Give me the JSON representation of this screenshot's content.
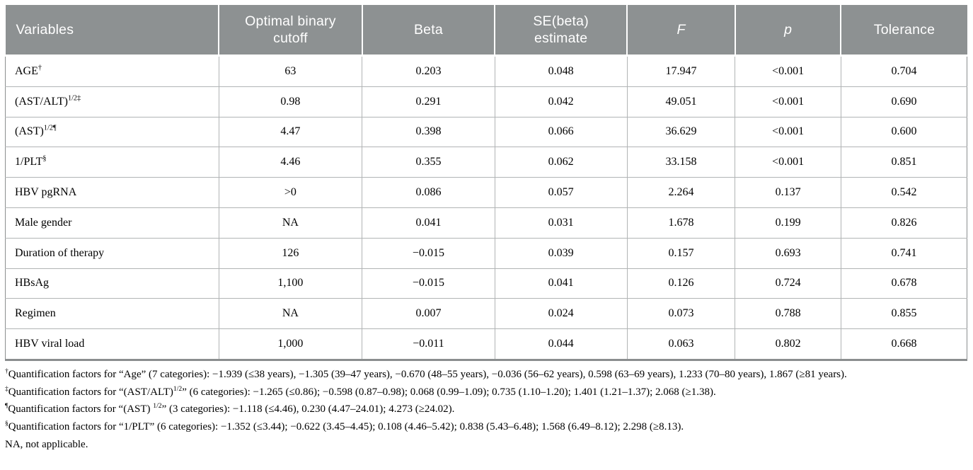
{
  "colors": {
    "header_bg": "#8d9192",
    "header_text": "#ffffff",
    "cell_border": "#b1b4b5",
    "outer_border": "#8b8e8f",
    "body_bg": "#ffffff",
    "text": "#000000"
  },
  "table": {
    "columns": [
      {
        "id": "variables",
        "lines": [
          "Variables"
        ],
        "italic": false
      },
      {
        "id": "optimal-binary-cutoff",
        "lines": [
          "Optimal binary",
          "cutoff"
        ],
        "italic": false
      },
      {
        "id": "beta",
        "lines": [
          "Beta"
        ],
        "italic": false
      },
      {
        "id": "se-beta-estimate",
        "lines": [
          "SE(beta)",
          "estimate"
        ],
        "italic": false
      },
      {
        "id": "f",
        "lines": [
          "F"
        ],
        "italic": true
      },
      {
        "id": "p",
        "lines": [
          "p"
        ],
        "italic": true
      },
      {
        "id": "tolerance",
        "lines": [
          "Tolerance"
        ],
        "italic": false
      }
    ],
    "col_widths_pct": [
      22.2,
      14.9,
      13.8,
      13.75,
      11.25,
      11.0,
      13.1
    ],
    "rows": [
      {
        "variable": [
          {
            "text": "AGE"
          },
          {
            "sup": "†"
          }
        ],
        "values": [
          "63",
          "0.203",
          "0.048",
          "17.947",
          "<0.001",
          "0.704"
        ]
      },
      {
        "variable": [
          {
            "text": "(AST/ALT)"
          },
          {
            "sup": "1/2‡"
          }
        ],
        "values": [
          "0.98",
          "0.291",
          "0.042",
          "49.051",
          "<0.001",
          "0.690"
        ]
      },
      {
        "variable": [
          {
            "text": "(AST)"
          },
          {
            "sup": "1/2¶"
          }
        ],
        "values": [
          "4.47",
          "0.398",
          "0.066",
          "36.629",
          "<0.001",
          "0.600"
        ]
      },
      {
        "variable": [
          {
            "text": "1/PLT"
          },
          {
            "sup": "§"
          }
        ],
        "values": [
          "4.46",
          "0.355",
          "0.062",
          "33.158",
          "<0.001",
          "0.851"
        ]
      },
      {
        "variable": [
          {
            "text": "HBV pgRNA"
          }
        ],
        "values": [
          ">0",
          "0.086",
          "0.057",
          "2.264",
          "0.137",
          "0.542"
        ]
      },
      {
        "variable": [
          {
            "text": "Male gender"
          }
        ],
        "values": [
          "NA",
          "0.041",
          "0.031",
          "1.678",
          "0.199",
          "0.826"
        ]
      },
      {
        "variable": [
          {
            "text": "Duration of therapy"
          }
        ],
        "values": [
          "126",
          "−0.015",
          "0.039",
          "0.157",
          "0.693",
          "0.741"
        ]
      },
      {
        "variable": [
          {
            "text": "HBsAg"
          }
        ],
        "values": [
          "1,100",
          "−0.015",
          "0.041",
          "0.126",
          "0.724",
          "0.678"
        ]
      },
      {
        "variable": [
          {
            "text": "Regimen"
          }
        ],
        "values": [
          "NA",
          "0.007",
          "0.024",
          "0.073",
          "0.788",
          "0.855"
        ]
      },
      {
        "variable": [
          {
            "text": "HBV viral load"
          }
        ],
        "values": [
          "1,000",
          "−0.011",
          "0.044",
          "0.063",
          "0.802",
          "0.668"
        ]
      }
    ]
  },
  "footnotes": [
    {
      "segments": [
        {
          "sup": "†"
        },
        {
          "text": "Quantification factors for “Age” (7 categories): −1.939 (≤38 years), −1.305 (39–47 years), −0.670 (48–55 years), −0.036 (56–62 years), 0.598 (63–69 years), 1.233 (70–80 years), 1.867 (≥81 years)."
        }
      ]
    },
    {
      "segments": [
        {
          "sup": "‡"
        },
        {
          "text": "Quantification factors for “(AST/ALT)"
        },
        {
          "sup": "1/2"
        },
        {
          "text": "” (6 categories): −1.265 (≤0.86); −0.598 (0.87–0.98); 0.068 (0.99–1.09); 0.735 (1.10–1.20); 1.401 (1.21–1.37); 2.068 (≥1.38)."
        }
      ]
    },
    {
      "segments": [
        {
          "sup": "¶"
        },
        {
          "text": "Quantification factors for “(AST) "
        },
        {
          "sup": "1/2"
        },
        {
          "text": "” (3 categories): −1.118 (≤4.46), 0.230 (4.47–24.01); 4.273 (≥24.02)."
        }
      ]
    },
    {
      "segments": [
        {
          "sup": "§"
        },
        {
          "text": "Quantification factors for “1/PLT” (6 categories): −1.352 (≤3.44); −0.622 (3.45–4.45); 0.108 (4.46–5.42); 0.838 (5.43–6.48); 1.568 (6.49–8.12); 2.298 (≥8.13)."
        }
      ]
    },
    {
      "segments": [
        {
          "text": "NA, not applicable."
        }
      ]
    }
  ]
}
